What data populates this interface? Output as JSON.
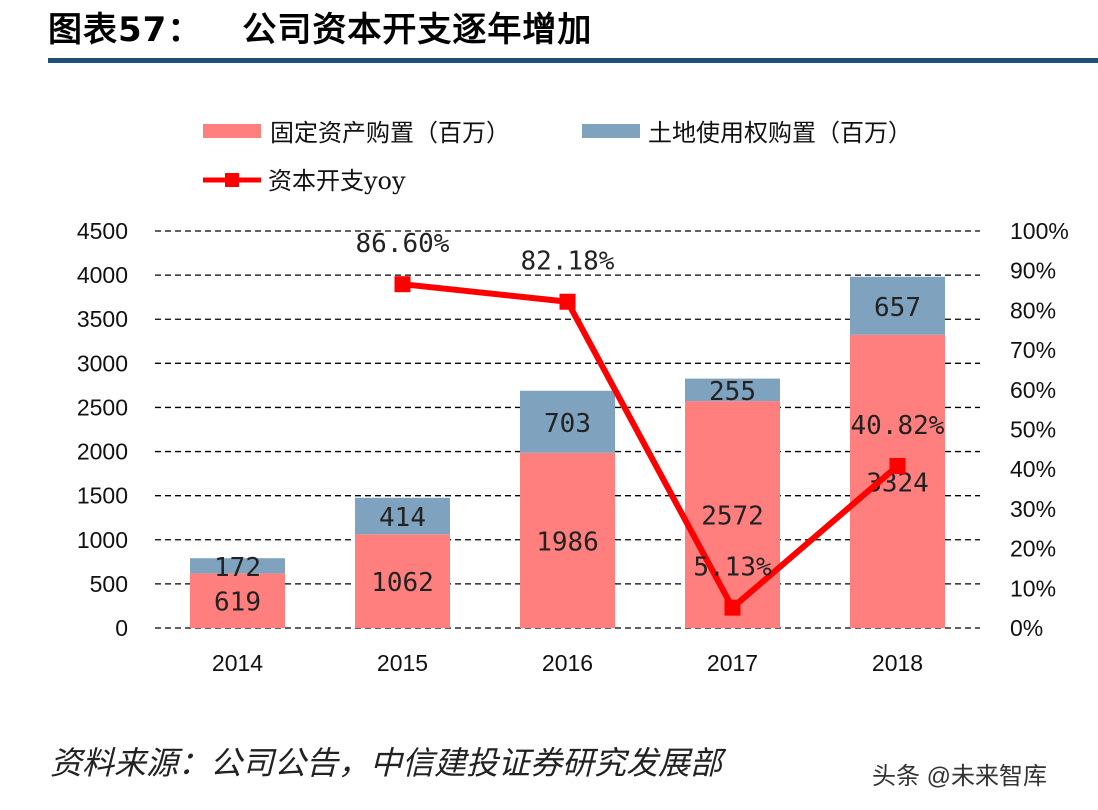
{
  "header": {
    "title_prefix": "图表57：",
    "title": "公司资本开支逐年增加"
  },
  "footer": {
    "source": "资料来源：公司公告，中信建投证券研究发展部",
    "watermark": "头条 @未来智库"
  },
  "chart_data": {
    "type": "bar",
    "stacked": true,
    "categories": [
      "2014",
      "2015",
      "2016",
      "2017",
      "2018"
    ],
    "series": [
      {
        "name": "固定资产购置（百万）",
        "values": [
          619,
          1062,
          1986,
          2572,
          3324
        ],
        "color": "#ff7f7f",
        "axis": "left"
      },
      {
        "name": "土地使用权购置（百万）",
        "values": [
          172,
          414,
          703,
          255,
          657
        ],
        "color": "#7fa3bf",
        "axis": "left"
      },
      {
        "name": "资本开支yoy",
        "type": "line",
        "values": [
          null,
          86.6,
          82.18,
          5.13,
          40.82
        ],
        "labels": [
          "",
          "86.60%",
          "82.18%",
          "5.13%",
          "40.82%"
        ],
        "color": "#ff0000",
        "axis": "right"
      }
    ],
    "ylim": [
      0,
      4500
    ],
    "yticks": [
      0,
      500,
      1000,
      1500,
      2000,
      2500,
      3000,
      3500,
      4000,
      4500
    ],
    "y2lim": [
      0,
      100
    ],
    "y2ticks": [
      "0%",
      "10%",
      "20%",
      "30%",
      "40%",
      "50%",
      "60%",
      "70%",
      "80%",
      "90%",
      "100%"
    ],
    "grid": "dashed horizontal",
    "legend": "top"
  }
}
